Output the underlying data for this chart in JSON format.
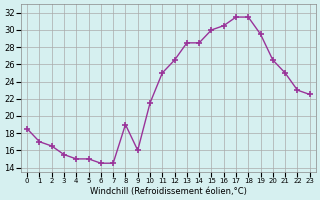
{
  "hours": [
    0,
    1,
    2,
    3,
    4,
    5,
    6,
    7,
    8,
    9,
    10,
    11,
    12,
    13,
    14,
    15,
    16,
    17,
    18,
    19,
    20,
    21,
    22,
    23
  ],
  "values": [
    18.5,
    17.0,
    16.5,
    15.5,
    15.0,
    15.0,
    14.5,
    14.5,
    19.0,
    16.0,
    21.5,
    25.0,
    26.5,
    28.5,
    28.5,
    30.0,
    30.5,
    31.5,
    31.5,
    29.5,
    26.5,
    25.0,
    23.0,
    22.5
  ],
  "line_color": "#993399",
  "marker": "P",
  "bg_color": "#d6f0f0",
  "grid_color": "#aaaaaa",
  "xlabel": "Windchill (Refroidissement éolien,°C)",
  "ylabel_ticks": [
    14,
    16,
    18,
    20,
    22,
    24,
    26,
    28,
    30,
    32
  ],
  "xlim": [
    -0.5,
    23.5
  ],
  "ylim": [
    13.5,
    33
  ],
  "xtick_labels": [
    "0",
    "1",
    "2",
    "3",
    "4",
    "5",
    "6",
    "7",
    "8",
    "9",
    "10",
    "11",
    "12",
    "13",
    "14",
    "15",
    "16",
    "17",
    "18",
    "19",
    "20",
    "21",
    "22",
    "23"
  ]
}
